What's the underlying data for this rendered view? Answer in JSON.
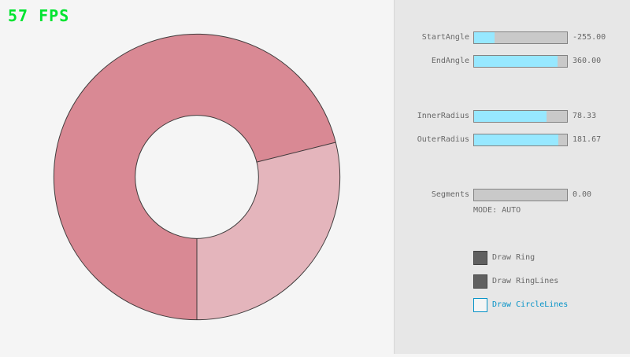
{
  "fps": {
    "text": "57 FPS",
    "color": "#00e430"
  },
  "ring": {
    "colors": {
      "dark_fill": "#d98994",
      "light_fill": "#e4b5bc",
      "hole_fill": "#f5f5f5",
      "outline": "#2e2e2e"
    }
  },
  "panel": {
    "sliders": [
      {
        "label": "StartAngle",
        "value": "-255.00",
        "fill_pct": 22
      },
      {
        "label": "EndAngle",
        "value": "360.00",
        "fill_pct": 90
      },
      {
        "label": "InnerRadius",
        "value": "78.33",
        "fill_pct": 78
      },
      {
        "label": "OuterRadius",
        "value": "181.67",
        "fill_pct": 91
      },
      {
        "label": "Segments",
        "value": "0.00",
        "fill_pct": 0
      }
    ],
    "mode_text": "MODE: AUTO",
    "checkboxes": [
      {
        "label": "Draw Ring",
        "state": "checked"
      },
      {
        "label": "Draw RingLines",
        "state": "checked"
      },
      {
        "label": "Draw CircleLines",
        "state": "focused"
      }
    ],
    "colors": {
      "slider_fill": "#97e8ff",
      "slider_bg": "#c9c9c9",
      "slider_border": "#838383",
      "label_text": "#686868",
      "accent_blue": "#0492c7"
    }
  }
}
